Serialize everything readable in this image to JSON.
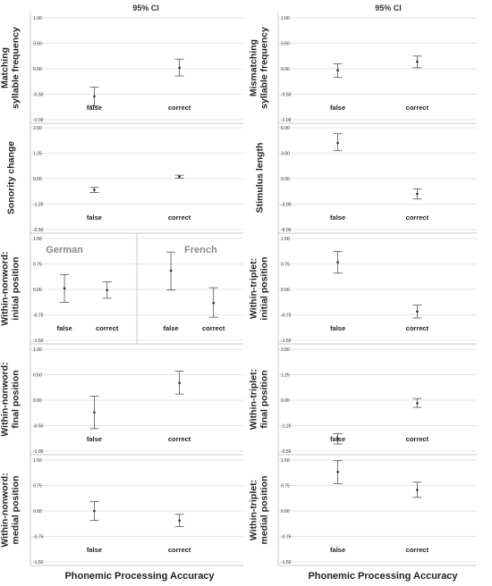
{
  "header": {
    "left": "95% CI",
    "right": "95% CI"
  },
  "footer": {
    "left": "Phonemic Processing Accuracy",
    "right": "Phonemic Processing Accuracy"
  },
  "chart_data": [
    {
      "type": "errorbar",
      "ylabel": [
        "Matching",
        "syllable frequency"
      ],
      "yticks": [
        "1.00",
        "0.50",
        "0.00",
        "-0.50",
        "-1.00"
      ],
      "ylim": [
        -1.0,
        1.0
      ],
      "categories": [
        "false",
        "correct"
      ],
      "points": [
        {
          "category": "false",
          "mean": -0.54,
          "low": -0.73,
          "high": -0.36
        },
        {
          "category": "correct",
          "mean": 0.02,
          "low": -0.14,
          "high": 0.19
        }
      ]
    },
    {
      "type": "errorbar",
      "ylabel": [
        "Mismatching",
        "syllable frequency"
      ],
      "yticks": [
        "1.00",
        "0.50",
        "0.00",
        "-0.50",
        "-1.00"
      ],
      "ylim": [
        -1.0,
        1.0
      ],
      "categories": [
        "false",
        "correct"
      ],
      "points": [
        {
          "category": "false",
          "mean": -0.03,
          "low": -0.17,
          "high": 0.1
        },
        {
          "category": "correct",
          "mean": 0.14,
          "low": 0.02,
          "high": 0.25
        }
      ]
    },
    {
      "type": "errorbar",
      "ylabel": [
        "Sonority change"
      ],
      "yticks": [
        "2.50",
        "1.25",
        "0.00",
        "-1.25",
        "-2.50"
      ],
      "ylim": [
        -2.5,
        2.5
      ],
      "categories": [
        "false",
        "correct"
      ],
      "points": [
        {
          "category": "false",
          "mean": -0.55,
          "low": -0.68,
          "high": -0.43
        },
        {
          "category": "correct",
          "mean": 0.1,
          "low": 0.03,
          "high": 0.17
        }
      ]
    },
    {
      "type": "errorbar",
      "ylabel": [
        "Stimulus length"
      ],
      "yticks": [
        "6.00",
        "3.00",
        "0.00",
        "-3.00",
        "-6.00"
      ],
      "ylim": [
        -6.0,
        6.0
      ],
      "categories": [
        "false",
        "correct"
      ],
      "points": [
        {
          "category": "false",
          "mean": 4.2,
          "low": 3.3,
          "high": 5.3
        },
        {
          "category": "correct",
          "mean": -1.8,
          "low": -2.4,
          "high": -1.2
        }
      ]
    },
    {
      "type": "errorbar",
      "ylabel": [
        "Within-nonword:",
        "initial position"
      ],
      "yticks": [
        "1.50",
        "0.75",
        "0.00",
        "-0.75",
        "-1.50"
      ],
      "ylim": [
        -1.5,
        1.5
      ],
      "groups": [
        {
          "name": "German",
          "categories": [
            "false",
            "correct"
          ],
          "points": [
            {
              "category": "false",
              "mean": 0.03,
              "low": -0.38,
              "high": 0.44
            },
            {
              "category": "correct",
              "mean": -0.02,
              "low": -0.26,
              "high": 0.22
            }
          ]
        },
        {
          "name": "French",
          "categories": [
            "false",
            "correct"
          ],
          "points": [
            {
              "category": "false",
              "mean": 0.55,
              "low": -0.02,
              "high": 1.1
            },
            {
              "category": "correct",
              "mean": -0.4,
              "low": -0.82,
              "high": 0.05
            }
          ]
        }
      ]
    },
    {
      "type": "errorbar",
      "ylabel": [
        "Within-triplet:",
        "initial position"
      ],
      "yticks": [
        "1.50",
        "0.75",
        "0.00",
        "-0.75",
        "-1.50"
      ],
      "ylim": [
        -1.5,
        1.5
      ],
      "categories": [
        "false",
        "correct"
      ],
      "points": [
        {
          "category": "false",
          "mean": 0.8,
          "low": 0.48,
          "high": 1.12
        },
        {
          "category": "correct",
          "mean": -0.65,
          "low": -0.84,
          "high": -0.46
        }
      ]
    },
    {
      "type": "errorbar",
      "ylabel": [
        "Within-nonword:",
        "final position"
      ],
      "yticks": [
        "1.00",
        "0.50",
        "0.00",
        "-0.50",
        "-1.00"
      ],
      "ylim": [
        -1.0,
        1.0
      ],
      "categories": [
        "false",
        "correct"
      ],
      "points": [
        {
          "category": "false",
          "mean": -0.24,
          "low": -0.56,
          "high": 0.08
        },
        {
          "category": "correct",
          "mean": 0.34,
          "low": 0.12,
          "high": 0.57
        }
      ]
    },
    {
      "type": "errorbar",
      "ylabel": [
        "Within-triplet:",
        "final position"
      ],
      "yticks": [
        "2.50",
        "1.25",
        "0.00",
        "-1.25",
        "-2.50"
      ],
      "ylim": [
        -2.5,
        2.5
      ],
      "categories": [
        "false",
        "correct"
      ],
      "points": [
        {
          "category": "false",
          "mean": -1.9,
          "low": -2.15,
          "high": -1.65
        },
        {
          "category": "correct",
          "mean": -0.15,
          "low": -0.35,
          "high": 0.08
        }
      ]
    },
    {
      "type": "errorbar",
      "ylabel": [
        "Within-nonword:",
        "medial position"
      ],
      "yticks": [
        "1.50",
        "0.75",
        "0.00",
        "-0.75",
        "-1.50"
      ],
      "ylim": [
        -1.5,
        1.5
      ],
      "categories": [
        "false",
        "correct"
      ],
      "points": [
        {
          "category": "false",
          "mean": 0.0,
          "low": -0.28,
          "high": 0.28
        },
        {
          "category": "correct",
          "mean": -0.28,
          "low": -0.46,
          "high": -0.1
        }
      ]
    },
    {
      "type": "errorbar",
      "ylabel": [
        "Within-triplet:",
        "medial position"
      ],
      "yticks": [
        "1.50",
        "0.75",
        "0.00",
        "-0.75",
        "-1.50"
      ],
      "ylim": [
        -1.5,
        1.5
      ],
      "categories": [
        "false",
        "correct"
      ],
      "points": [
        {
          "category": "false",
          "mean": 1.15,
          "low": 0.8,
          "high": 1.48
        },
        {
          "category": "correct",
          "mean": 0.62,
          "low": 0.4,
          "high": 0.85
        }
      ]
    }
  ]
}
